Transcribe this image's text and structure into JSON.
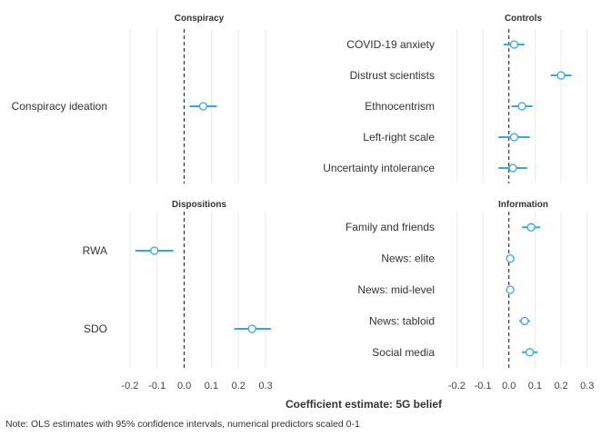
{
  "colors": {
    "estimate": "#35a7e6",
    "zero_line": "#111111",
    "grid": "#ebebeb",
    "text": "#333333"
  },
  "chart_data": {
    "type": "scatter",
    "xlabel": "Coefficient estimate: 5G belief",
    "note": "Note: OLS estimates with 95% confidence intervals, numerical predictors scaled 0-1",
    "xticks": [
      -0.2,
      -0.1,
      0.0,
      0.1,
      0.2,
      0.3
    ],
    "xtick_labels": [
      "-0.2",
      "-0.1",
      "0.0",
      "0.1",
      "0.2",
      "0.3"
    ],
    "xlim": [
      -0.25,
      0.36
    ],
    "grid": true,
    "zero_reference_line": true,
    "panels": [
      {
        "title": "Conspiracy",
        "items": [
          {
            "label": "Conspiracy ideation",
            "estimate": 0.07,
            "lower": 0.02,
            "upper": 0.12
          }
        ]
      },
      {
        "title": "Controls",
        "items": [
          {
            "label": "COVID-19 anxiety",
            "estimate": 0.02,
            "lower": -0.02,
            "upper": 0.06
          },
          {
            "label": "Distrust scientists",
            "estimate": 0.2,
            "lower": 0.16,
            "upper": 0.24
          },
          {
            "label": "Ethnocentrism",
            "estimate": 0.05,
            "lower": 0.01,
            "upper": 0.09
          },
          {
            "label": "Left-right scale",
            "estimate": 0.02,
            "lower": -0.04,
            "upper": 0.08
          },
          {
            "label": "Uncertainty intolerance",
            "estimate": 0.015,
            "lower": -0.04,
            "upper": 0.07
          }
        ]
      },
      {
        "title": "Dispositions",
        "items": [
          {
            "label": "RWA",
            "estimate": -0.11,
            "lower": -0.18,
            "upper": -0.04
          },
          {
            "label": "SDO",
            "estimate": 0.25,
            "lower": 0.185,
            "upper": 0.32
          }
        ]
      },
      {
        "title": "Information",
        "items": [
          {
            "label": "Family and friends",
            "estimate": 0.085,
            "lower": 0.05,
            "upper": 0.12
          },
          {
            "label": "News: elite",
            "estimate": 0.005,
            "lower": -0.01,
            "upper": 0.02
          },
          {
            "label": "News: mid-level",
            "estimate": 0.005,
            "lower": -0.01,
            "upper": 0.02
          },
          {
            "label": "News: tabloid",
            "estimate": 0.06,
            "lower": 0.04,
            "upper": 0.08
          },
          {
            "label": "Social media",
            "estimate": 0.08,
            "lower": 0.05,
            "upper": 0.11
          }
        ]
      }
    ]
  }
}
